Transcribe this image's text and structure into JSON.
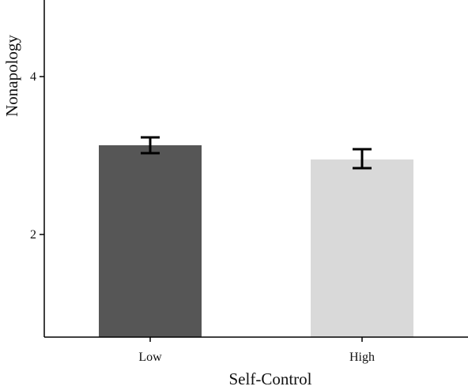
{
  "chart_data": {
    "type": "bar",
    "categories": [
      "Low",
      "High"
    ],
    "values": [
      3.13,
      2.95
    ],
    "error_low": [
      3.03,
      2.84
    ],
    "error_high": [
      3.23,
      3.08
    ],
    "colors": [
      "#565656",
      "#d9d9d9"
    ],
    "xlabel": "Self-Control",
    "ylabel": "Nonapology",
    "ylim": [
      0.7,
      4.97
    ],
    "yticks": [
      2,
      4
    ],
    "ytick_labels": [
      "2",
      "4"
    ],
    "grid": false
  }
}
